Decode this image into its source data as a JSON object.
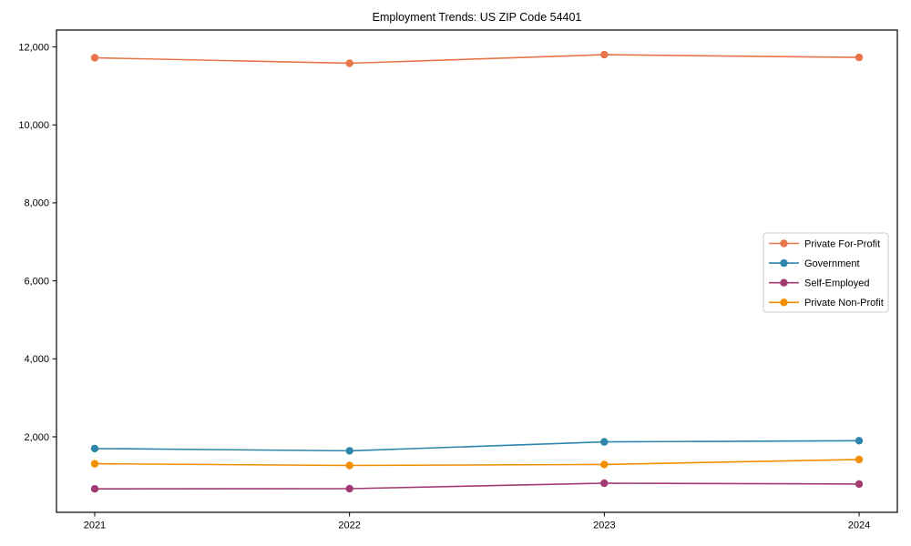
{
  "chart_data": {
    "type": "line",
    "title": "Employment Trends: US ZIP Code 54401",
    "xlabel": "",
    "ylabel": "",
    "categories": [
      2021,
      2022,
      2023,
      2024
    ],
    "xtick_labels": [
      "2021",
      "2022",
      "2023",
      "2024"
    ],
    "yticks": [
      2000,
      4000,
      6000,
      8000,
      10000,
      12000
    ],
    "ytick_labels": [
      "2,000",
      "4,000",
      "6,000",
      "8,000",
      "10,000",
      "12,000"
    ],
    "ylim": [
      63,
      12433
    ],
    "xlim": [
      2020.85,
      2024.15
    ],
    "grid": false,
    "legend_position": "center right",
    "marker": "circle",
    "series": [
      {
        "name": "Private For-Profit",
        "color": "#E8764A",
        "values": [
          11720,
          11580,
          11800,
          11730
        ]
      },
      {
        "name": "Government",
        "color": "#2E86AB",
        "values": [
          1700,
          1640,
          1870,
          1900
        ]
      },
      {
        "name": "Self-Employed",
        "color": "#A23B72",
        "values": [
          665,
          670,
          810,
          790
        ]
      },
      {
        "name": "Private Non-Profit",
        "color": "#F18F01",
        "values": [
          1310,
          1265,
          1290,
          1420
        ]
      }
    ],
    "axis_color": "#000000",
    "legend_border_color": "#cccccc",
    "legend_background": "#ffffff"
  }
}
